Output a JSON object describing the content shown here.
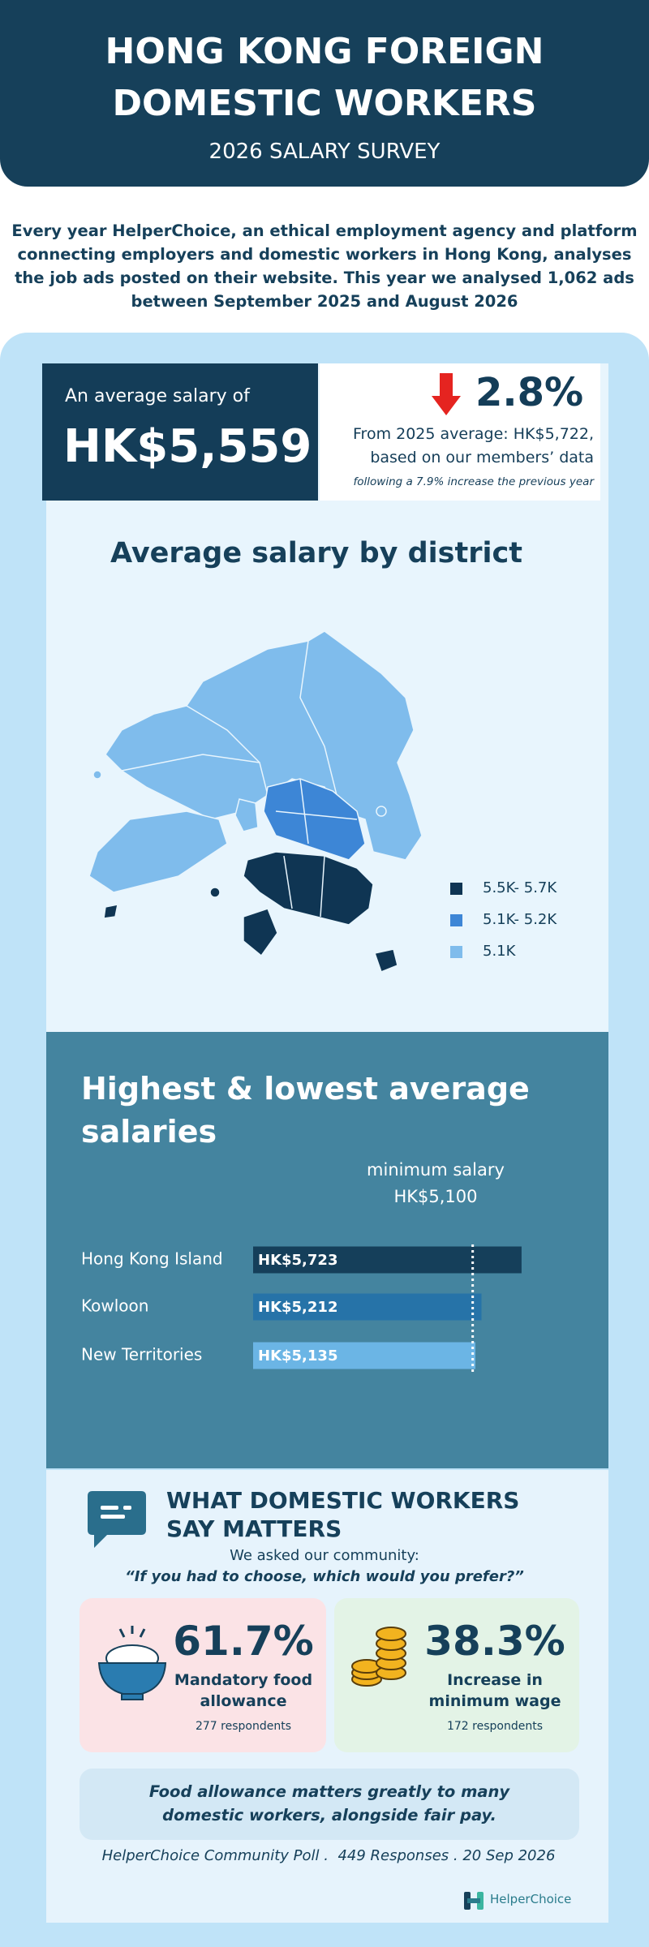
{
  "header": {
    "title": "HONG KONG FOREIGN DOMESTIC WORKERS",
    "subtitle": "2026 SALARY SURVEY"
  },
  "intro": "Every year HelperChoice, an ethical employment agency and platform connecting employers and domestic workers in Hong Kong, analyses the job ads posted on their website. This year we analysed 1,062 ads between September 2025 and August 2026",
  "summary": {
    "label": "An average salary of",
    "average": "HK$5,559",
    "change": "2.8%",
    "comparison": "From 2025 average: HK$5,722, based on our members’ data",
    "note": "following a 7.9% increase the previous year"
  },
  "map": {
    "title": "Average salary by district",
    "legend": [
      "5.5K- 5.7K",
      "5.1K- 5.2K",
      "5.1K"
    ]
  },
  "chart_data": {
    "type": "bar",
    "orientation": "horizontal",
    "title": "Highest & lowest average salaries",
    "categories": [
      "Hong Kong Island",
      "Kowloon",
      "New Territories"
    ],
    "values": [
      5723,
      5212,
      5135
    ],
    "value_labels": [
      "HK$5,723",
      "HK$5,212",
      "HK$5,135"
    ],
    "colors": [
      "#153f5a",
      "#2673a8",
      "#6bb5e5"
    ],
    "xlim": [
      2300,
      5900
    ],
    "reference": {
      "value": 5100,
      "label": "HK$5,100",
      "text": "minimum salary"
    }
  },
  "poll": {
    "title": "WHAT DOMESTIC WORKERS SAY MATTERS",
    "intro": "We asked our community:",
    "question": "“If you had to choose, which would you prefer?”",
    "options": [
      {
        "percent": "61.7%",
        "label": "Mandatory food allowance",
        "respondents": "277 respondents"
      },
      {
        "percent": "38.3%",
        "label": "Increase in minimum wage",
        "respondents": "172 respondents"
      }
    ],
    "conclusion": "Food allowance matters greatly to many domestic workers, alongside fair pay.",
    "credit": "HelperChoice Community Poll .  449 Responses . 20 Sep 2026"
  },
  "logo": "HelperChoice"
}
